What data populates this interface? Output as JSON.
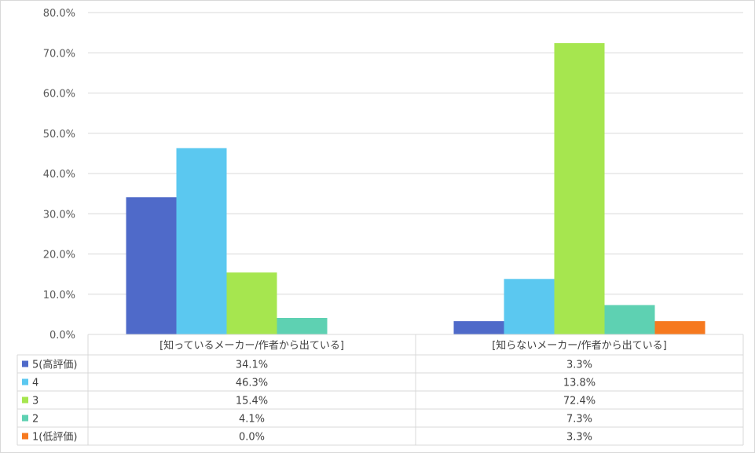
{
  "chart_data": {
    "type": "bar",
    "categories": [
      "[知っているメーカー/作者から出ている]",
      "[知らないメーカー/作者から出ている]"
    ],
    "series": [
      {
        "name": "5(高評価)",
        "values": [
          34.1,
          3.3
        ],
        "labels": [
          "34.1%",
          "3.3%"
        ],
        "color": "#4f6ac9"
      },
      {
        "name": "4",
        "values": [
          46.3,
          13.8
        ],
        "labels": [
          "46.3%",
          "13.8%"
        ],
        "color": "#5bc8f0"
      },
      {
        "name": "3",
        "values": [
          15.4,
          72.4
        ],
        "labels": [
          "15.4%",
          "72.4%"
        ],
        "color": "#a6e64f"
      },
      {
        "name": "2",
        "values": [
          4.1,
          7.3
        ],
        "labels": [
          "4.1%",
          "7.3%"
        ],
        "color": "#5ed1b2"
      },
      {
        "name": "1(低評価)",
        "values": [
          0.0,
          3.3
        ],
        "labels": [
          "0.0%",
          "3.3%"
        ],
        "color": "#f6791f"
      }
    ],
    "yticks": [
      "0.0%",
      "10.0%",
      "20.0%",
      "30.0%",
      "40.0%",
      "50.0%",
      "60.0%",
      "70.0%",
      "80.0%"
    ],
    "ylim": [
      0,
      80
    ],
    "grid": true,
    "legend": "data-table"
  }
}
